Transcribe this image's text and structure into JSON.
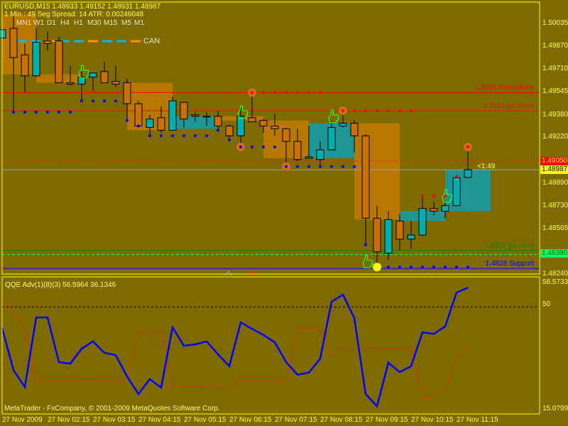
{
  "header": {
    "symbol_line": "EURUSD,M15  1.48933 1.49152 1.48931 1.48987",
    "timer_line": "1 Min : 49 Seg    Spread: 14    ATR:  0.00246048",
    "timeframes": [
      "MN1",
      "W1",
      "D1",
      "H4",
      "H1",
      "M30",
      "M15",
      "M5",
      "M1"
    ],
    "can_label": "CAN",
    "countdown": "<1:49"
  },
  "colors": {
    "background": "#7f6a00",
    "bull": "#00b0b0",
    "bear": "#c87000",
    "frame": "#ffff00",
    "resistance": "#ff0000",
    "short": "#d02020",
    "long": "#108010",
    "support": "#0000ff",
    "qqe_main": "#0000ff",
    "qqe_signal": "#ff2020"
  },
  "levels": [
    {
      "label": "1.4954 Resistance",
      "price": 1.4954,
      "color": "#ff0000"
    },
    {
      "label": "1.4941 go Short",
      "price": 1.4941,
      "color": "#d02020"
    },
    {
      "label": "1.4841 go Long",
      "price": 1.4841,
      "color": "#108010"
    },
    {
      "label": "1.4828 Support",
      "price": 1.4828,
      "color": "#0000ff"
    }
  ],
  "price_axis": {
    "ticks": [
      "1.50035",
      "1.49870",
      "1.49710",
      "1.49545",
      "1.49380",
      "1.49220",
      "1.48890",
      "1.48730",
      "1.48565",
      "1.48240"
    ],
    "ask_badge": "1.49050",
    "bid_badge": "1.48987",
    "green_badge": "1.48380"
  },
  "time_axis": [
    "27 Nov 2009",
    "27 Nov 02:15",
    "27 Nov 03:15",
    "27 Nov 04:15",
    "27 Nov 05:15",
    "27 Nov 06:15",
    "27 Nov 07:15",
    "27 Nov 08:15",
    "27 Nov 09:15",
    "27 Nov 10:15",
    "27 Nov 11:15"
  ],
  "indicator": {
    "title": "QQE Adv(1)(8)(3) 56.5964 36.1346",
    "max_label": "58.5733",
    "mid_label": "50",
    "min_label": "15.0799"
  },
  "footer": "MetaTrader - FxCompany, © 2001-2009 MetaQuotes Software Corp.",
  "chart_data": {
    "type": "candlestick",
    "symbol": "EURUSD",
    "timeframe": "M15",
    "ylim": [
      1.4824,
      1.50035
    ],
    "candles_ohlc": [
      [
        1.4993,
        1.5008,
        1.4972,
        1.4999
      ],
      [
        1.5,
        1.501,
        1.494,
        1.4979
      ],
      [
        1.4981,
        1.4989,
        1.4954,
        1.4966
      ],
      [
        1.4966,
        1.5,
        1.4965,
        1.499
      ],
      [
        1.4991,
        1.4998,
        1.4984,
        1.4989
      ],
      [
        1.4991,
        1.4994,
        1.4961,
        1.4961
      ],
      [
        1.4961,
        1.4973,
        1.4959,
        1.496
      ],
      [
        1.496,
        1.4969,
        1.4948,
        1.4965
      ],
      [
        1.4965,
        1.4968,
        1.4955,
        1.4968
      ],
      [
        1.4969,
        1.4976,
        1.4961,
        1.4961
      ],
      [
        1.4962,
        1.4973,
        1.4958,
        1.496
      ],
      [
        1.4961,
        1.4964,
        1.4934,
        1.4946
      ],
      [
        1.4946,
        1.4948,
        1.493,
        1.493
      ],
      [
        1.4929,
        1.4938,
        1.4923,
        1.4935
      ],
      [
        1.4936,
        1.4944,
        1.4925,
        1.4927
      ],
      [
        1.4927,
        1.4951,
        1.4927,
        1.4948
      ],
      [
        1.4947,
        1.4947,
        1.4929,
        1.4935
      ],
      [
        1.4938,
        1.494,
        1.4933,
        1.4937
      ],
      [
        1.4937,
        1.494,
        1.493,
        1.4937
      ],
      [
        1.4937,
        1.4941,
        1.4927,
        1.493
      ],
      [
        1.493,
        1.4931,
        1.492,
        1.4923
      ],
      [
        1.4923,
        1.4944,
        1.4915,
        1.4937
      ],
      [
        1.4936,
        1.4953,
        1.4933,
        1.4933
      ],
      [
        1.4934,
        1.4935,
        1.4925,
        1.493
      ],
      [
        1.493,
        1.4939,
        1.4923,
        1.4928
      ],
      [
        1.4928,
        1.4929,
        1.4901,
        1.4919
      ],
      [
        1.4919,
        1.4928,
        1.4905,
        1.4906
      ],
      [
        1.4907,
        1.493,
        1.4907,
        1.4908
      ],
      [
        1.4906,
        1.4919,
        1.4901,
        1.4913
      ],
      [
        1.4913,
        1.4934,
        1.4913,
        1.4929
      ],
      [
        1.493,
        1.4939,
        1.4929,
        1.4932
      ],
      [
        1.4932,
        1.4934,
        1.4911,
        1.4923
      ],
      [
        1.4923,
        1.4924,
        1.4845,
        1.4864
      ],
      [
        1.4864,
        1.4873,
        1.4829,
        1.484
      ],
      [
        1.4839,
        1.4869,
        1.4834,
        1.4863
      ],
      [
        1.4862,
        1.4867,
        1.4841,
        1.4849
      ],
      [
        1.4849,
        1.4862,
        1.4842,
        1.4852
      ],
      [
        1.4852,
        1.488,
        1.4851,
        1.4871
      ],
      [
        1.4871,
        1.4876,
        1.4866,
        1.4869
      ],
      [
        1.4869,
        1.4876,
        1.4864,
        1.4873
      ],
      [
        1.4873,
        1.4894,
        1.4873,
        1.4893
      ],
      [
        1.48933,
        1.49152,
        1.48931,
        1.48987
      ]
    ],
    "zones": [
      {
        "from": 0,
        "to": 3,
        "top": 1.501,
        "bottom": 1.4967,
        "kind": "bear"
      },
      {
        "from": 3,
        "to": 7,
        "top": 1.4967,
        "bottom": 1.4961,
        "kind": "bear"
      },
      {
        "from": 11,
        "to": 15,
        "top": 1.4961,
        "bottom": 1.4927,
        "kind": "bear"
      },
      {
        "from": 15,
        "to": 19,
        "top": 1.4937,
        "bottom": 1.4928,
        "kind": "bull"
      },
      {
        "from": 19,
        "to": 23,
        "top": 1.4937,
        "bottom": 1.4934,
        "kind": "bear"
      },
      {
        "from": 23,
        "to": 27,
        "top": 1.4934,
        "bottom": 1.4907,
        "kind": "bear"
      },
      {
        "from": 27,
        "to": 31,
        "top": 1.4932,
        "bottom": 1.4907,
        "kind": "bull"
      },
      {
        "from": 31,
        "to": 35,
        "top": 1.4932,
        "bottom": 1.4863,
        "kind": "bear"
      },
      {
        "from": 35,
        "to": 39,
        "top": 1.4869,
        "bottom": 1.4862,
        "kind": "bull"
      },
      {
        "from": 39,
        "to": 43,
        "top": 1.4899,
        "bottom": 1.4869,
        "kind": "bull"
      }
    ],
    "support_dots": [
      [
        1,
        1.494
      ],
      [
        2,
        1.494
      ],
      [
        3,
        1.494
      ],
      [
        4,
        1.494
      ],
      [
        5,
        1.494
      ],
      [
        6,
        1.494
      ],
      [
        7,
        1.4948
      ],
      [
        8,
        1.4948
      ],
      [
        9,
        1.4948
      ],
      [
        10,
        1.4948
      ],
      [
        11,
        1.4934
      ],
      [
        12,
        1.493
      ],
      [
        13,
        1.4923
      ],
      [
        14,
        1.4923
      ],
      [
        15,
        1.4923
      ],
      [
        16,
        1.4923
      ],
      [
        17,
        1.4923
      ],
      [
        18,
        1.4923
      ],
      [
        19,
        1.4927
      ],
      [
        20,
        1.492
      ],
      [
        21,
        1.4915
      ],
      [
        22,
        1.4915
      ],
      [
        23,
        1.4915
      ],
      [
        24,
        1.4915
      ],
      [
        25,
        1.4901
      ],
      [
        26,
        1.4901
      ],
      [
        27,
        1.4901
      ],
      [
        28,
        1.4901
      ],
      [
        29,
        1.4901
      ],
      [
        30,
        1.4901
      ],
      [
        31,
        1.4901
      ],
      [
        32,
        1.4845
      ],
      [
        34,
        1.4829
      ],
      [
        35,
        1.4829
      ],
      [
        36,
        1.4829
      ],
      [
        37,
        1.4829
      ],
      [
        38,
        1.4829
      ],
      [
        39,
        1.4829
      ],
      [
        40,
        1.4829
      ],
      [
        41,
        1.4829
      ]
    ],
    "resistance_dots": [
      [
        22,
        1.4954
      ],
      [
        23,
        1.4954
      ],
      [
        24,
        1.4954
      ],
      [
        25,
        1.4954
      ],
      [
        26,
        1.4954
      ],
      [
        27,
        1.4954
      ],
      [
        28,
        1.4954
      ],
      [
        30,
        1.4941
      ],
      [
        31,
        1.4941
      ],
      [
        32,
        1.4941
      ],
      [
        33,
        1.4941
      ],
      [
        34,
        1.4941
      ],
      [
        35,
        1.4941
      ],
      [
        36,
        1.4941
      ],
      [
        37,
        1.488
      ],
      [
        38,
        1.488
      ],
      [
        39,
        1.488
      ],
      [
        40,
        1.4894
      ],
      [
        41,
        1.4915
      ]
    ],
    "signal_circles": [
      [
        21,
        1.4915
      ],
      [
        22,
        1.4954
      ],
      [
        25,
        1.4901
      ],
      [
        30,
        1.4941
      ],
      [
        41,
        1.4915
      ]
    ],
    "thumbs_up": [
      [
        7,
        1.4969
      ],
      [
        21,
        1.494
      ],
      [
        29,
        1.4937
      ],
      [
        32,
        1.4833
      ],
      [
        39,
        1.488
      ]
    ],
    "qqe": {
      "ylim": [
        15.0799,
        58.5733
      ],
      "level": 50,
      "main": [
        42.8,
        28.4,
        22.6,
        46.4,
        46.4,
        31.1,
        30.6,
        35.7,
        38.2,
        34.3,
        33.5,
        26.2,
        20.2,
        25.3,
        22.4,
        43.0,
        36.7,
        37.2,
        38.2,
        33.8,
        29.7,
        44.7,
        42.5,
        40.4,
        37.9,
        31.1,
        26.8,
        27.5,
        32.3,
        51.8,
        54.2,
        46.2,
        20.2,
        16.0,
        30.9,
        27.7,
        29.7,
        41.3,
        40.8,
        43.3,
        54.9,
        56.5964
      ],
      "signal": [
        53.5,
        48.1,
        43.3,
        25.0,
        25.0,
        25.0,
        25.0,
        25.0,
        25.0,
        25.0,
        25.0,
        25.0,
        41.3,
        41.3,
        41.3,
        22.6,
        22.6,
        22.6,
        22.6,
        22.6,
        22.6,
        25.0,
        25.0,
        25.0,
        25.0,
        25.0,
        42.5,
        42.5,
        42.5,
        33.5,
        36.0,
        36.0,
        36.0,
        36.0,
        36.0,
        36.0,
        36.0,
        19.5,
        19.5,
        21.9,
        32.3,
        36.1346
      ]
    }
  }
}
